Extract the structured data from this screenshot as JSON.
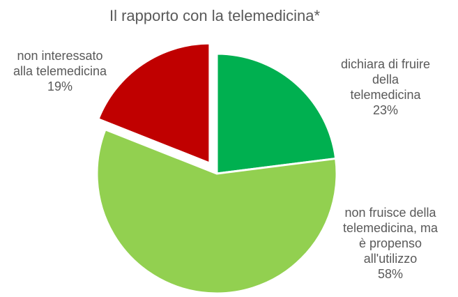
{
  "chart_data": {
    "type": "pie",
    "title": "Il rapporto con la telemedicina*",
    "slices": [
      {
        "label_lines": [
          "dichiara di fruire",
          "della",
          "telemedicina"
        ],
        "value": 23,
        "value_label": "23%",
        "color": "#00b050",
        "exploded": false
      },
      {
        "label_lines": [
          "non fruisce della",
          "telemedicina, ma",
          "è propenso",
          "all'utilizzo"
        ],
        "value": 58,
        "value_label": "58%",
        "color": "#92d050",
        "exploded": false
      },
      {
        "label_lines": [
          "non interessato",
          "alla telemedicina"
        ],
        "value": 19,
        "value_label": "19%",
        "color": "#c00000",
        "exploded": true
      }
    ],
    "start_angle": "12 o'clock",
    "direction": "clockwise",
    "legend": "none"
  }
}
